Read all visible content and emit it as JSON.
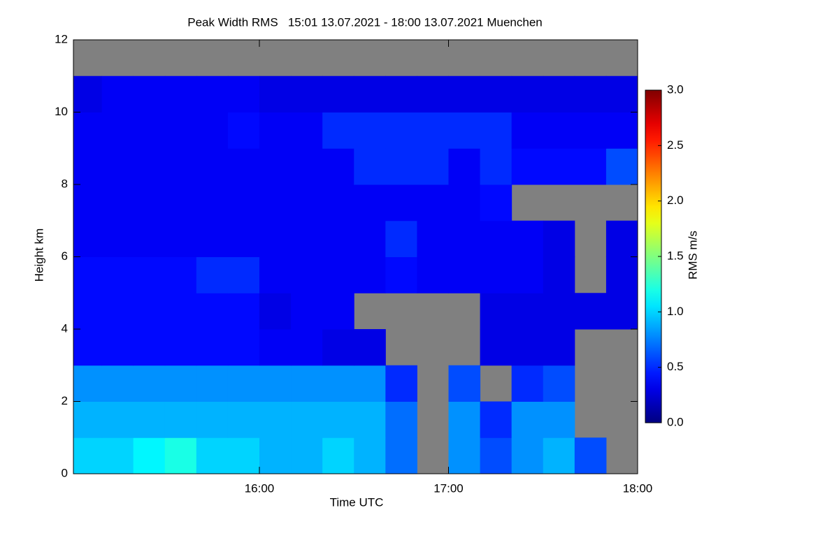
{
  "chart_data": {
    "type": "heatmap",
    "title": "Peak Width RMS   15:01 13.07.2021 - 18:00 13.07.2021 Muenchen",
    "x_label": "Time UTC",
    "y_label": "Height km",
    "colorbar_label": "RMS m/s",
    "colormap": "jet",
    "missing_color": "#808080",
    "xlim": [
      901,
      1080
    ],
    "xticks": [
      {
        "value": 960,
        "label": "16:00"
      },
      {
        "value": 1020,
        "label": "17:00"
      },
      {
        "value": 1080,
        "label": "18:00"
      }
    ],
    "ylim": [
      0,
      12
    ],
    "yticks": [
      0,
      2,
      4,
      6,
      8,
      10,
      12
    ],
    "zlim": [
      0,
      3
    ],
    "zticks": [
      {
        "value": 0,
        "label": "0.0"
      },
      {
        "value": 0.5,
        "label": "0.5"
      },
      {
        "value": 1,
        "label": "1.0"
      },
      {
        "value": 1.5,
        "label": "1.5"
      },
      {
        "value": 2,
        "label": "2.0"
      },
      {
        "value": 2.5,
        "label": "2.5"
      },
      {
        "value": 3,
        "label": "3.0"
      }
    ],
    "x": [
      905,
      915,
      925,
      935,
      945,
      955,
      965,
      975,
      985,
      995,
      1005,
      1015,
      1025,
      1035,
      1045,
      1055,
      1065,
      1075
    ],
    "y": [
      0.5,
      1.5,
      2.5,
      3.5,
      4.5,
      5.5,
      6.5,
      7.5,
      8.5,
      9.5,
      10.5,
      11.5
    ],
    "z": [
      [
        1.0,
        1.0,
        1.1,
        1.2,
        1.0,
        1.0,
        0.9,
        0.9,
        1.0,
        0.9,
        0.7,
        null,
        0.8,
        0.6,
        0.8,
        0.9,
        0.6,
        null
      ],
      [
        0.9,
        0.9,
        0.9,
        0.9,
        0.9,
        0.9,
        0.9,
        0.9,
        0.9,
        0.9,
        0.7,
        null,
        0.8,
        0.5,
        0.8,
        0.8,
        null,
        null
      ],
      [
        0.8,
        0.8,
        0.8,
        0.8,
        0.8,
        0.8,
        0.8,
        0.8,
        0.8,
        0.8,
        0.5,
        null,
        0.6,
        null,
        0.5,
        0.6,
        null,
        null
      ],
      [
        0.4,
        0.4,
        0.4,
        0.4,
        0.4,
        0.4,
        0.35,
        0.35,
        0.3,
        0.3,
        null,
        null,
        null,
        0.3,
        0.3,
        0.3,
        null,
        null
      ],
      [
        0.4,
        0.4,
        0.4,
        0.4,
        0.4,
        0.4,
        0.3,
        0.35,
        0.35,
        null,
        null,
        null,
        null,
        0.3,
        0.3,
        0.3,
        0.3,
        0.3
      ],
      [
        0.4,
        0.4,
        0.4,
        0.4,
        0.5,
        0.5,
        0.35,
        0.35,
        0.35,
        0.35,
        0.4,
        0.35,
        0.35,
        0.35,
        0.35,
        0.3,
        null,
        0.3
      ],
      [
        0.35,
        0.35,
        0.35,
        0.35,
        0.35,
        0.35,
        0.35,
        0.35,
        0.35,
        0.35,
        0.5,
        0.35,
        0.35,
        0.35,
        0.35,
        0.3,
        null,
        0.3
      ],
      [
        0.35,
        0.35,
        0.35,
        0.35,
        0.35,
        0.35,
        0.35,
        0.35,
        0.35,
        0.35,
        0.35,
        0.35,
        0.35,
        0.4,
        null,
        null,
        null,
        null
      ],
      [
        0.35,
        0.35,
        0.35,
        0.35,
        0.35,
        0.35,
        0.35,
        0.35,
        0.35,
        0.5,
        0.5,
        0.5,
        0.35,
        0.5,
        0.4,
        0.4,
        0.4,
        0.6
      ],
      [
        0.35,
        0.35,
        0.35,
        0.35,
        0.35,
        0.4,
        0.35,
        0.35,
        0.5,
        0.5,
        0.5,
        0.5,
        0.5,
        0.5,
        0.35,
        0.35,
        0.35,
        0.35
      ],
      [
        0.3,
        0.35,
        0.35,
        0.35,
        0.35,
        0.35,
        0.3,
        0.3,
        0.3,
        0.3,
        0.3,
        0.3,
        0.3,
        0.3,
        0.3,
        0.3,
        0.3,
        0.3
      ],
      [
        null,
        null,
        null,
        null,
        null,
        null,
        null,
        null,
        null,
        null,
        null,
        null,
        null,
        null,
        null,
        null,
        null,
        null
      ]
    ]
  }
}
